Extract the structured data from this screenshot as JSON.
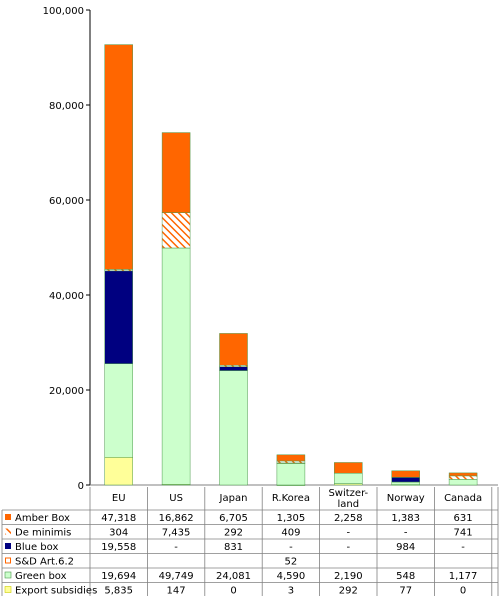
{
  "chart_data": {
    "type": "bar",
    "stacked": true,
    "categories": [
      "EU",
      "US",
      "Japan",
      "R.Korea",
      "Switzer-land",
      "Norway",
      "Canada"
    ],
    "category_labels": [
      [
        "EU"
      ],
      [
        "US"
      ],
      [
        "Japan"
      ],
      [
        "R.Korea"
      ],
      [
        "Switzer-",
        "land"
      ],
      [
        "Norway"
      ],
      [
        "Canada"
      ]
    ],
    "ylim": [
      0,
      100000
    ],
    "yticks": [
      0,
      20000,
      40000,
      60000,
      80000,
      100000
    ],
    "ytick_labels": [
      "0",
      "20,000",
      "40,000",
      "60,000",
      "80,000",
      "100,000"
    ],
    "grid": false,
    "legend_placement": "data table below plot",
    "series": [
      {
        "name": "Export subsidies",
        "color": "#ffff99",
        "pattern": "solid",
        "values": [
          5835,
          147,
          0,
          3,
          292,
          77,
          0
        ],
        "table_labels": [
          "5,835",
          "147",
          "0",
          "3",
          "292",
          "77",
          "0"
        ]
      },
      {
        "name": "Green box",
        "color": "#ccffcc",
        "pattern": "solid",
        "values": [
          19694,
          49749,
          24081,
          4590,
          2190,
          548,
          1177
        ],
        "table_labels": [
          "19,694",
          "49,749",
          "24,081",
          "4,590",
          "2,190",
          "548",
          "1,177"
        ]
      },
      {
        "name": "S&D Art.6.2",
        "color": "#ff6600",
        "pattern": "solid",
        "values": [
          null,
          null,
          null,
          52,
          null,
          null,
          null
        ],
        "table_labels": [
          "",
          "",
          "",
          "52",
          "",
          "",
          ""
        ]
      },
      {
        "name": "Blue box",
        "color": "#000080",
        "pattern": "solid",
        "values": [
          19558,
          null,
          831,
          null,
          null,
          984,
          null
        ],
        "table_labels": [
          "19,558",
          "-",
          "831",
          "-",
          "-",
          "984",
          "-"
        ]
      },
      {
        "name": "De minimis",
        "color": "#ff6600",
        "pattern": "hatched",
        "values": [
          304,
          7435,
          292,
          409,
          null,
          null,
          741
        ],
        "table_labels": [
          "304",
          "7,435",
          "292",
          "409",
          "-",
          "-",
          "741"
        ]
      },
      {
        "name": "Amber Box",
        "color": "#ff6600",
        "pattern": "solid",
        "values": [
          47318,
          16862,
          6705,
          1305,
          2258,
          1383,
          631
        ],
        "table_labels": [
          "47,318",
          "16,862",
          "6,705",
          "1,305",
          "2,258",
          "1,383",
          "631"
        ]
      }
    ],
    "table_row_order": [
      "Amber Box",
      "De minimis",
      "Blue box",
      "S&D Art.6.2",
      "Green box",
      "Export subsidies"
    ]
  }
}
